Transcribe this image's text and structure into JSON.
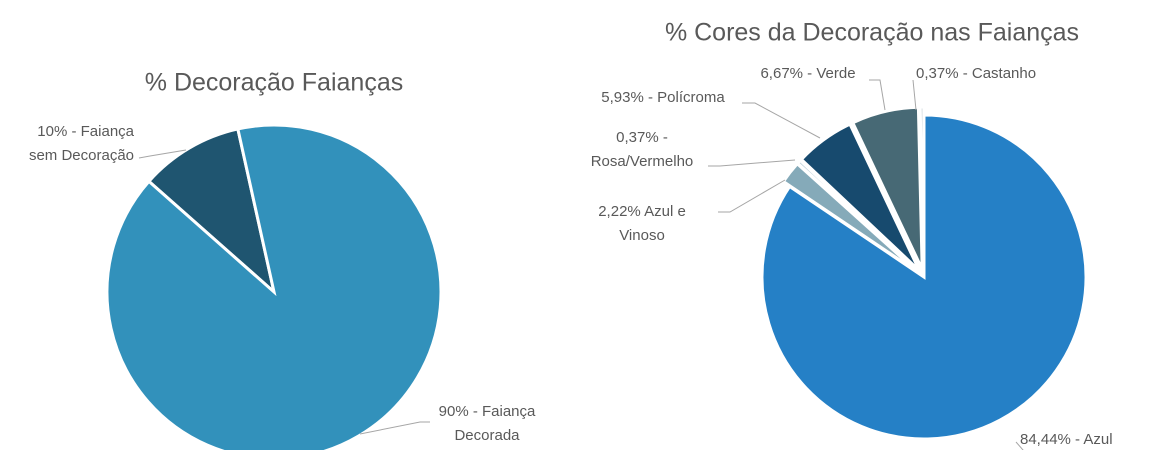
{
  "chart_data": [
    {
      "type": "pie",
      "title": "% Decoração Faianças",
      "categories": [
        "Faiança sem Decoração",
        "Faiança Decorada"
      ],
      "values": [
        10,
        90
      ],
      "value_labels": [
        [
          "10% - Faiança",
          "sem Decoração"
        ],
        [
          "90% - Faiança",
          "Decorada"
        ]
      ],
      "colors": [
        "#1f5570",
        "#3291bb"
      ]
    },
    {
      "type": "pie",
      "title": "% Cores da Decoração nas Faianças",
      "categories": [
        "Azul",
        "Azul e Vinoso",
        "Rosa/Vermelho",
        "Polícroma",
        "Verde",
        "Castanho"
      ],
      "values": [
        84.44,
        2.22,
        0.37,
        5.93,
        6.67,
        0.37
      ],
      "value_labels": [
        [
          "84,44% - Azul"
        ],
        [
          "2,22% Azul e",
          "Vinoso"
        ],
        [
          "0,37% -",
          "Rosa/Vermelho"
        ],
        [
          "5,93% - Polícroma"
        ],
        [
          "6,67% - Verde"
        ],
        [
          "0,37% - Castanho"
        ]
      ],
      "colors": [
        "#2580c6",
        "#85aab9",
        "#b9cdd6",
        "#174a6e",
        "#476975",
        "#c9d3d8"
      ]
    }
  ]
}
